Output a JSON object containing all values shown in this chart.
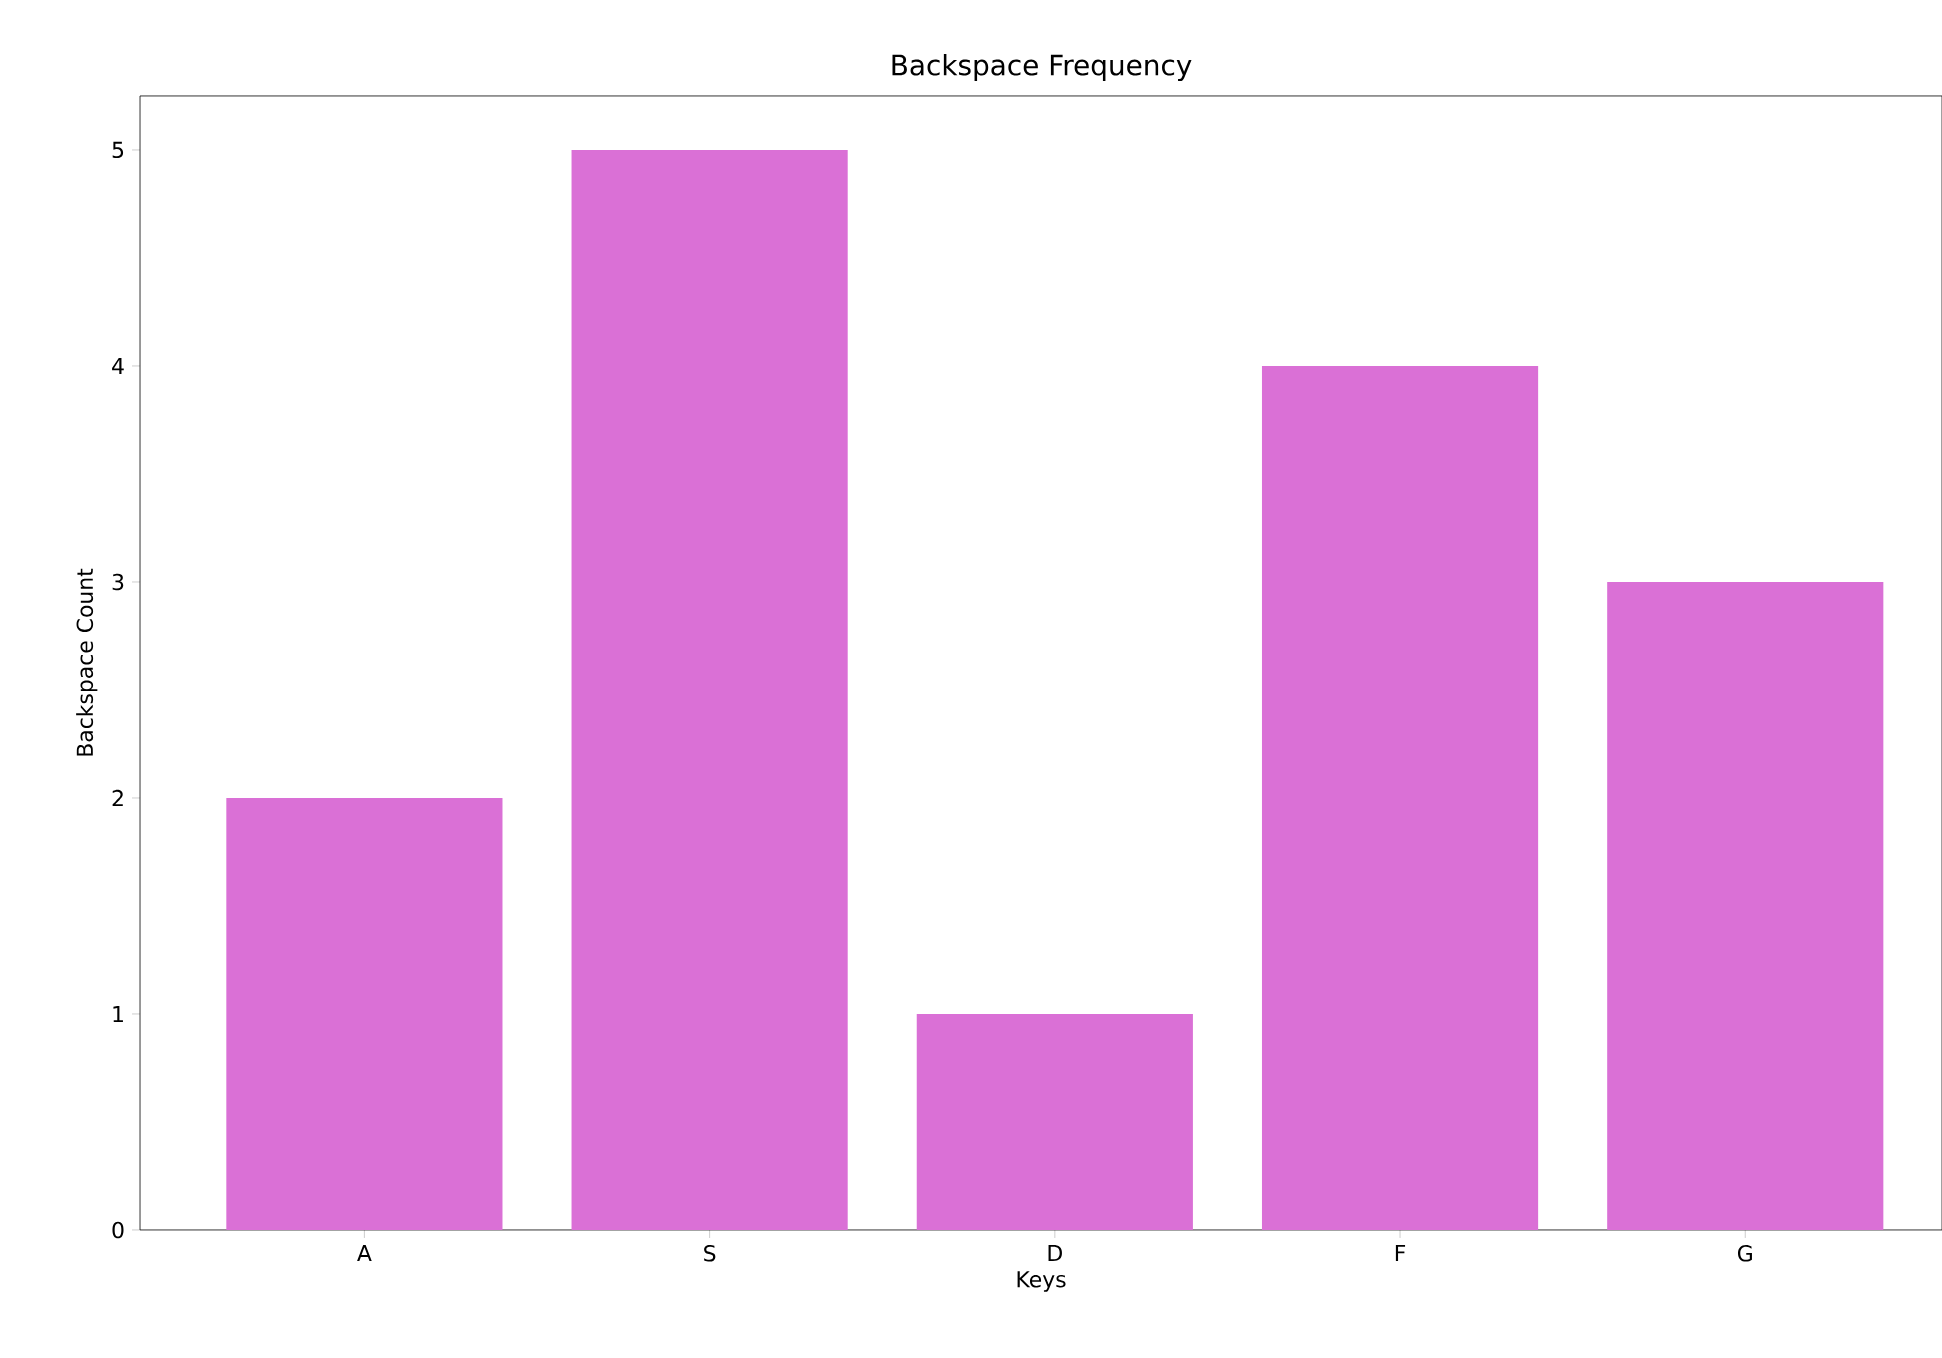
{
  "chart_data": {
    "type": "bar",
    "title": "Backspace Frequency",
    "xlabel": "Keys",
    "ylabel": "Backspace Count",
    "categories": [
      "A",
      "S",
      "D",
      "F",
      "G"
    ],
    "values": [
      2,
      5,
      1,
      4,
      3
    ],
    "color": "#da70d6",
    "ylim": [
      0,
      5.25
    ],
    "yticks": [
      0,
      1,
      2,
      3,
      4,
      5
    ],
    "grid": false
  }
}
